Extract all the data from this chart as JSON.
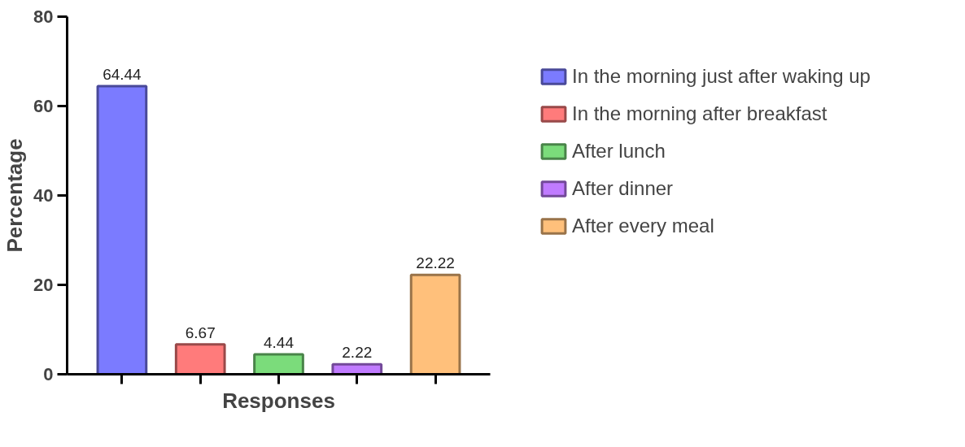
{
  "chart_data": {
    "type": "bar",
    "xlabel": "Responses",
    "ylabel": "Percentage",
    "categories": [
      null,
      null,
      null,
      null,
      null
    ],
    "series": [
      {
        "name": "In the morning just after waking up",
        "color": "#7b7bff",
        "values": [
          64.44,
          null,
          null,
          null,
          null
        ]
      },
      {
        "name": "In the morning after breakfast",
        "color": "#ff7b7b",
        "values": [
          null,
          6.67,
          null,
          null,
          null
        ]
      },
      {
        "name": "After lunch",
        "color": "#7bdc7b",
        "values": [
          null,
          null,
          4.44,
          null,
          null
        ]
      },
      {
        "name": "After dinner",
        "color": "#c07bff",
        "values": [
          null,
          null,
          null,
          2.22,
          null
        ]
      },
      {
        "name": "After every meal",
        "color": "#ffc07b",
        "values": [
          null,
          null,
          null,
          null,
          22.22
        ]
      }
    ],
    "ylim": [
      0,
      80
    ],
    "yticks": [
      0,
      20,
      40,
      60,
      80
    ],
    "data_labels": true,
    "grid": false,
    "legend": "right"
  }
}
